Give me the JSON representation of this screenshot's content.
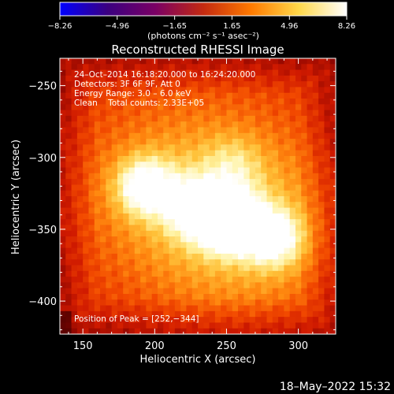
{
  "chart_data": {
    "type": "heatmap",
    "title": "Reconstructed RHESSI Image",
    "xlabel": "Heliocentric X (arcsec)",
    "ylabel": "Heliocentric Y (arcsec)",
    "xlim": [
      134,
      326
    ],
    "ylim": [
      -423,
      -231
    ],
    "x_ticks": [
      150,
      200,
      250,
      300
    ],
    "y_ticks": [
      -250,
      -300,
      -350,
      -400
    ],
    "x_tick_labels": [
      "150",
      "200",
      "250",
      "300"
    ],
    "y_tick_labels": [
      "−250",
      "−300",
      "−350",
      "−400"
    ],
    "colorbar": {
      "range": [
        -8.26,
        8.26
      ],
      "ticks": [
        -8.26,
        -4.96,
        -1.65,
        1.65,
        4.96,
        8.26
      ],
      "tick_labels": [
        "−8.26",
        "−4.96",
        "−1.65",
        "1.65",
        "4.96",
        "8.26"
      ],
      "label": "(photons cm⁻² s⁻¹ asec⁻²)",
      "colormap": [
        "#0000ff",
        "#3b0080",
        "#7a0064",
        "#c42a10",
        "#ff7a00",
        "#ffd84a",
        "#ffffff"
      ]
    },
    "annotations": [
      "24–Oct–2014 16:18:20.000 to 16:24:20.000",
      "Detectors: 3F 6F 9F, Att 0",
      "Energy Range: 3.0 – 6.0 keV",
      "Clean    Total counts: 2.33E+05"
    ],
    "peak_label": "Position of Peak = [252,−344]",
    "peak": [
      252,
      -344
    ],
    "sources": [
      {
        "x": 193,
        "y": -320,
        "amplitude": 0.72
      },
      {
        "x": 228,
        "y": -335,
        "amplitude": 0.6
      },
      {
        "x": 252,
        "y": -344,
        "amplitude": 1.0
      },
      {
        "x": 283,
        "y": -356,
        "amplitude": 0.68
      },
      {
        "x": 255,
        "y": -305,
        "amplitude": 0.25
      }
    ],
    "background_level": 0.35
  },
  "footer": {
    "date": "18–May–2022 15:32"
  }
}
